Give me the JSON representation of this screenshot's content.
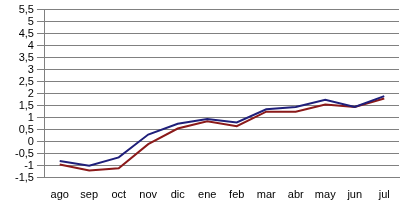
{
  "chart_data": {
    "type": "line",
    "categories": [
      "ago",
      "sep",
      "oct",
      "nov",
      "dic",
      "ene",
      "feb",
      "mar",
      "abr",
      "may",
      "jun",
      "jul"
    ],
    "series": [
      {
        "color": "#1f1f7a",
        "values": [
          -0.8,
          -1.0,
          -0.65,
          0.3,
          0.75,
          0.95,
          0.8,
          1.35,
          1.45,
          1.75,
          1.45,
          1.9
        ]
      },
      {
        "color": "#8b1a1a",
        "values": [
          -0.95,
          -1.2,
          -1.1,
          -0.1,
          0.55,
          0.85,
          0.65,
          1.25,
          1.25,
          1.55,
          1.45,
          1.8
        ]
      }
    ],
    "ylim": [
      -1.5,
      5.5
    ],
    "yticks": [
      {
        "value": -1.5,
        "label": "-1,5"
      },
      -1,
      {
        "value": -0.5,
        "label": "-0,5"
      },
      0,
      {
        "value": 0.5,
        "label": "0,5"
      },
      1,
      {
        "value": 1.5,
        "label": "1,5"
      },
      2,
      {
        "value": 2.5,
        "label": "2,5"
      },
      3,
      {
        "value": 3.5,
        "label": "3,5"
      },
      4,
      {
        "value": 4.5,
        "label": "4,5"
      },
      5,
      {
        "value": 5.5,
        "label": "5,5"
      }
    ],
    "grid": true
  }
}
